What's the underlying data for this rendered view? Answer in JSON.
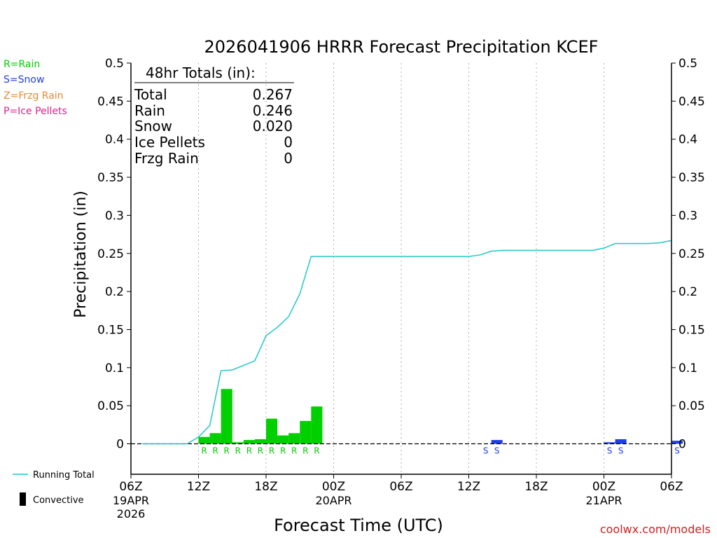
{
  "colors": {
    "rain": "#00d000",
    "snow": "#1f3fe6",
    "frzg": "#e68a30",
    "ice": "#e0208c",
    "running_total": "#20c8c8",
    "axis": "#000000",
    "grid": "#b0b0b0",
    "credit": "#d02020"
  },
  "legend_left": {
    "rain": "R=Rain",
    "snow": "S=Snow",
    "frzg": "Z=Frzg Rain",
    "ice": "P=Ice Pellets"
  },
  "legend_bottom": {
    "running_total": "Running Total",
    "convective": "Convective"
  },
  "totals_box": {
    "header": "48hr Totals (in):",
    "rows": [
      {
        "label": "Total",
        "value": "0.267"
      },
      {
        "label": "Rain",
        "value": "0.246"
      },
      {
        "label": "Snow",
        "value": "0.020"
      },
      {
        "label": "Ice Pellets",
        "value": "0"
      },
      {
        "label": "Frzg Rain",
        "value": "0"
      }
    ]
  },
  "credit": "coolwx.com/models",
  "chart_data": {
    "type": "bar",
    "title": "2026041906 HRRR Forecast Precipitation KCEF",
    "xlabel": "Forecast Time (UTC)",
    "ylabel": "Precipitation (in)",
    "ylim": [
      -0.04,
      0.5
    ],
    "yticks": [
      0,
      0.05,
      0.1,
      0.15,
      0.2,
      0.25,
      0.3,
      0.35,
      0.4,
      0.45,
      0.5
    ],
    "ytick_labels": [
      "0",
      "0.05",
      "0.1",
      "0.15",
      "0.2",
      "0.25",
      "0.3",
      "0.35",
      "0.4",
      "0.45",
      "0.5"
    ],
    "xlim_hours": [
      0,
      48
    ],
    "xticks": [
      {
        "hour": 0,
        "label": "06Z",
        "sub": [
          "19APR",
          "2026"
        ]
      },
      {
        "hour": 6,
        "label": "12Z",
        "sub": []
      },
      {
        "hour": 12,
        "label": "18Z",
        "sub": []
      },
      {
        "hour": 18,
        "label": "00Z",
        "sub": [
          "20APR"
        ]
      },
      {
        "hour": 24,
        "label": "06Z",
        "sub": []
      },
      {
        "hour": 30,
        "label": "12Z",
        "sub": []
      },
      {
        "hour": 36,
        "label": "18Z",
        "sub": []
      },
      {
        "hour": 42,
        "label": "00Z",
        "sub": [
          "21APR"
        ]
      },
      {
        "hour": 48,
        "label": "06Z",
        "sub": []
      }
    ],
    "bars": [
      {
        "hour": 6,
        "value": 0.009,
        "type": "R"
      },
      {
        "hour": 7,
        "value": 0.014,
        "type": "R"
      },
      {
        "hour": 8,
        "value": 0.072,
        "type": "R"
      },
      {
        "hour": 9,
        "value": 0.002,
        "type": "R"
      },
      {
        "hour": 10,
        "value": 0.005,
        "type": "R"
      },
      {
        "hour": 11,
        "value": 0.006,
        "type": "R"
      },
      {
        "hour": 12,
        "value": 0.033,
        "type": "R"
      },
      {
        "hour": 13,
        "value": 0.011,
        "type": "R"
      },
      {
        "hour": 14,
        "value": 0.014,
        "type": "R"
      },
      {
        "hour": 15,
        "value": 0.03,
        "type": "R"
      },
      {
        "hour": 16,
        "value": 0.049,
        "type": "R"
      },
      {
        "hour": 31,
        "value": 0.0,
        "type": "S"
      },
      {
        "hour": 32,
        "value": 0.005,
        "type": "S"
      },
      {
        "hour": 42,
        "value": 0.002,
        "type": "S"
      },
      {
        "hour": 43,
        "value": 0.006,
        "type": "S"
      },
      {
        "hour": 48,
        "value": 0.004,
        "type": "S"
      }
    ],
    "running_total": {
      "name": "Running Total",
      "x": [
        1,
        2,
        3,
        4,
        5,
        6,
        7,
        8,
        9,
        10,
        11,
        12,
        13,
        14,
        15,
        16,
        17,
        18,
        19,
        20,
        21,
        22,
        23,
        24,
        25,
        26,
        27,
        28,
        29,
        30,
        31,
        32,
        33,
        34,
        35,
        36,
        37,
        38,
        39,
        40,
        41,
        42,
        43,
        44,
        45,
        46,
        47,
        48
      ],
      "y": [
        0,
        0,
        0,
        0,
        0,
        0.009,
        0.024,
        0.096,
        0.097,
        0.103,
        0.109,
        0.142,
        0.153,
        0.167,
        0.197,
        0.246,
        0.246,
        0.246,
        0.246,
        0.246,
        0.246,
        0.246,
        0.246,
        0.246,
        0.246,
        0.246,
        0.246,
        0.246,
        0.246,
        0.246,
        0.248,
        0.253,
        0.254,
        0.254,
        0.254,
        0.254,
        0.254,
        0.254,
        0.254,
        0.254,
        0.254,
        0.257,
        0.263,
        0.263,
        0.263,
        0.263,
        0.264,
        0.267
      ]
    }
  }
}
